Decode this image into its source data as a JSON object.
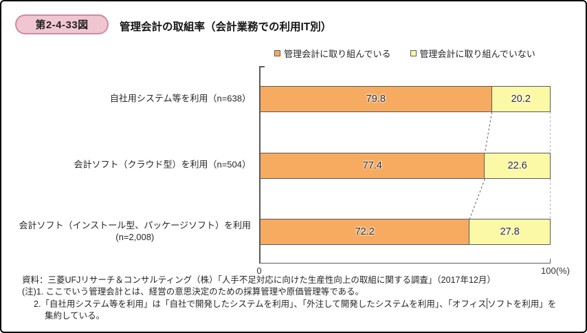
{
  "header": {
    "figure_label": "第2-4-33図",
    "title": "管理会計の取組率（会計業務での利用IT別）"
  },
  "chart_data": {
    "type": "bar",
    "orientation": "horizontal",
    "stacked": true,
    "title": "管理会計の取組率（会計業務での利用IT別）",
    "categories": [
      "自社用システム等を利用（n=638）",
      "会計ソフト（クラウド型）を利用（n=504）",
      "会計ソフト（インストール型、パッケージソフト）を利用\n(n=2,008)"
    ],
    "series": [
      {
        "name": "管理会計に取り組んでいる",
        "color": "#f6ab61",
        "values": [
          79.8,
          77.4,
          72.2
        ]
      },
      {
        "name": "管理会計に取り組んでいない",
        "color": "#fbf8a6",
        "values": [
          20.2,
          22.6,
          27.8
        ]
      }
    ],
    "xlim": [
      0,
      100
    ],
    "axis_labels": {
      "min": "0",
      "max": "100(%)"
    },
    "legend_position": "top",
    "grid": false
  },
  "notes": {
    "source": "資料：三菱UFJリサーチ＆コンサルティング（株）「人手不足対応に向けた生産性向上の取組に関する調査」（2017年12月）",
    "note1": "(注)1. ここでいう管理会計とは、経営の意思決定のための採算管理や原価管理等である。",
    "note2_before_caret": "2.「自社用システム等を利用」は「自社で開発したシステムを利用」、「外注して開発したシステムを利用」、「オフィス",
    "note2_after_caret": "ソフトを利用」を",
    "note2_line2": "集約している。"
  },
  "colors": {
    "badge_fill": "#efc6d2",
    "badge_border": "#ce8aa1",
    "bar_border": "#595959",
    "axis": "#595959"
  }
}
